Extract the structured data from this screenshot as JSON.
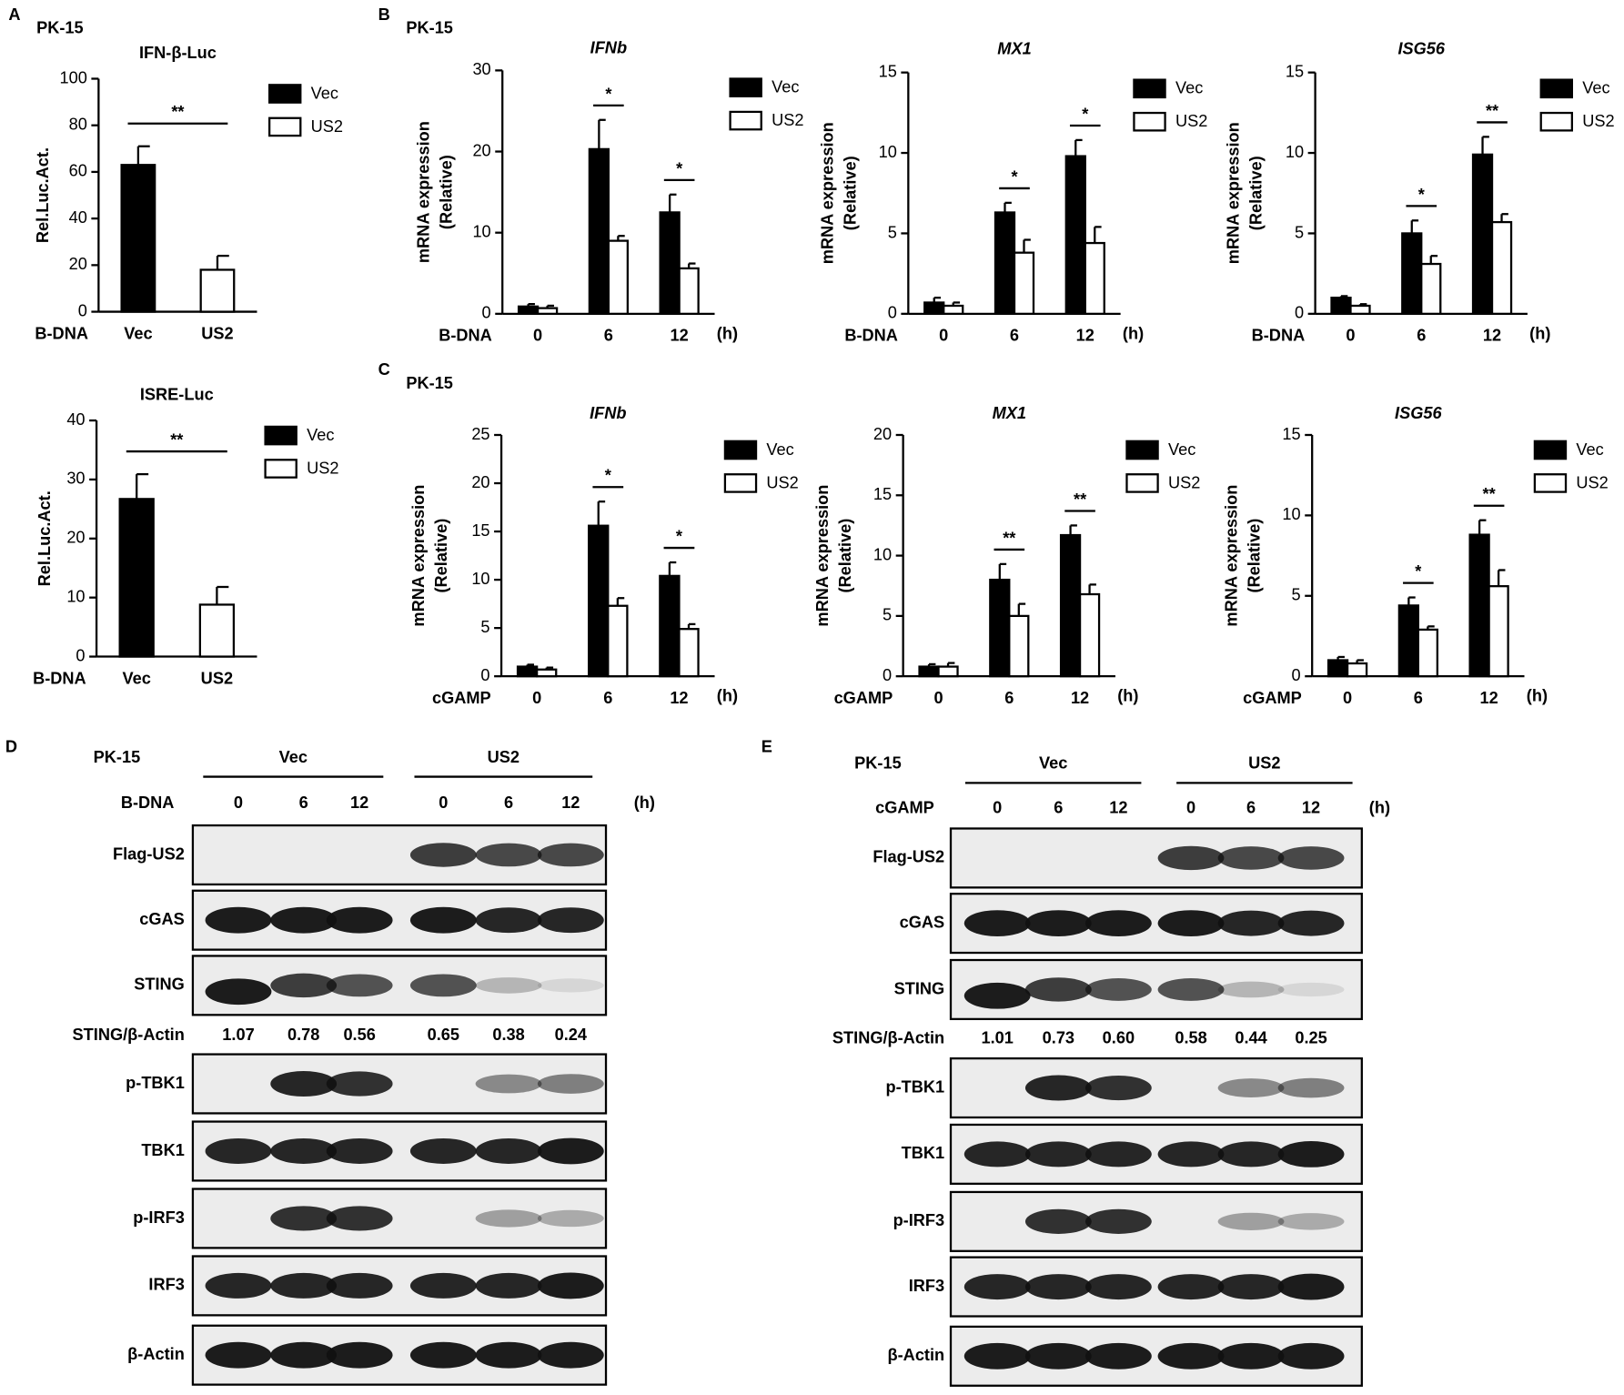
{
  "chart_data": [
    {
      "type": "bar",
      "panel": "A",
      "subtitle": "PK-15",
      "title": "IFN-β-Luc",
      "y_label": [
        "Rel.Luc.Act."
      ],
      "x_label": "B-DNA",
      "categories": [
        "Vec",
        "US2"
      ],
      "series": [
        {
          "name": "Vec",
          "color": "#000000",
          "values": [
            63,
            null
          ],
          "errors": [
            8,
            null
          ]
        },
        {
          "name": "US2",
          "color": "#ffffff",
          "values": [
            null,
            18
          ],
          "errors": [
            null,
            6
          ]
        }
      ],
      "ylim": [
        0,
        100
      ],
      "yticks": [
        0,
        20,
        40,
        60,
        80,
        100
      ],
      "significance": "**"
    },
    {
      "type": "bar",
      "title": "ISRE-Luc",
      "y_label": [
        "Rel.Luc.Act."
      ],
      "x_label": "B-DNA",
      "categories": [
        "Vec",
        "US2"
      ],
      "series": [
        {
          "name": "Vec",
          "color": "#000000",
          "values": [
            26.7,
            null
          ],
          "errors": [
            4.2,
            null
          ]
        },
        {
          "name": "US2",
          "color": "#ffffff",
          "values": [
            null,
            8.8
          ],
          "errors": [
            null,
            3
          ]
        }
      ],
      "ylim": [
        0,
        40
      ],
      "yticks": [
        0,
        10,
        20,
        30,
        40
      ],
      "significance": "**"
    },
    {
      "type": "bar",
      "panel": "B",
      "subtitle": "PK-15",
      "title": "IFNb",
      "italic_title": true,
      "y_label": [
        "mRNA expression",
        "(Relative)"
      ],
      "x_label": "B-DNA",
      "x_unit": "(h)",
      "categories": [
        "0",
        "6",
        "12"
      ],
      "series": [
        {
          "name": "Vec",
          "color": "#000000",
          "values": [
            0.9,
            20.3,
            12.5
          ],
          "errors": [
            0.3,
            3.6,
            2.2
          ]
        },
        {
          "name": "US2",
          "color": "#ffffff",
          "values": [
            0.7,
            9.0,
            5.6
          ],
          "errors": [
            0.3,
            0.6,
            0.6
          ]
        }
      ],
      "ylim": [
        0,
        30
      ],
      "yticks": [
        0,
        10,
        20,
        30
      ],
      "significance": [
        null,
        "*",
        "*"
      ]
    },
    {
      "type": "bar",
      "title": "MX1",
      "italic_title": true,
      "y_label": [
        "mRNA expression",
        "(Relative)"
      ],
      "x_label": "B-DNA",
      "x_unit": "(h)",
      "categories": [
        "0",
        "6",
        "12"
      ],
      "series": [
        {
          "name": "Vec",
          "color": "#000000",
          "values": [
            0.7,
            6.3,
            9.8
          ],
          "errors": [
            0.3,
            0.6,
            1.0
          ]
        },
        {
          "name": "US2",
          "color": "#ffffff",
          "values": [
            0.5,
            3.8,
            4.4
          ],
          "errors": [
            0.2,
            0.8,
            1.0
          ]
        }
      ],
      "ylim": [
        0,
        15
      ],
      "yticks": [
        0,
        5,
        10,
        15
      ],
      "significance": [
        null,
        "*",
        "*"
      ]
    },
    {
      "type": "bar",
      "title": "ISG56",
      "italic_title": true,
      "y_label": [
        "mRNA expression",
        "(Relative)"
      ],
      "x_label": "B-DNA",
      "x_unit": "(h)",
      "categories": [
        "0",
        "6",
        "12"
      ],
      "series": [
        {
          "name": "Vec",
          "color": "#000000",
          "values": [
            1.0,
            5.0,
            9.9
          ],
          "errors": [
            0.1,
            0.8,
            1.1
          ]
        },
        {
          "name": "US2",
          "color": "#ffffff",
          "values": [
            0.5,
            3.1,
            5.7
          ],
          "errors": [
            0.1,
            0.5,
            0.5
          ]
        }
      ],
      "ylim": [
        0,
        15
      ],
      "yticks": [
        0,
        5,
        10,
        15
      ],
      "significance": [
        null,
        "*",
        "**"
      ]
    },
    {
      "type": "bar",
      "panel": "C",
      "subtitle": "PK-15",
      "title": "IFNb",
      "italic_title": true,
      "y_label": [
        "mRNA expression",
        "(Relative)"
      ],
      "x_label": "cGAMP",
      "x_unit": "(h)",
      "categories": [
        "0",
        "6",
        "12"
      ],
      "series": [
        {
          "name": "Vec",
          "color": "#000000",
          "values": [
            1.0,
            15.6,
            10.4
          ],
          "errors": [
            0.2,
            2.5,
            1.4
          ]
        },
        {
          "name": "US2",
          "color": "#ffffff",
          "values": [
            0.7,
            7.3,
            4.9
          ],
          "errors": [
            0.2,
            0.8,
            0.5
          ]
        }
      ],
      "ylim": [
        0,
        25
      ],
      "yticks": [
        0,
        5,
        10,
        15,
        20,
        25
      ],
      "significance": [
        null,
        "*",
        "*"
      ]
    },
    {
      "type": "bar",
      "title": "MX1",
      "italic_title": true,
      "y_label": [
        "mRNA expression",
        "(Relative)"
      ],
      "x_label": "cGAMP",
      "x_unit": "(h)",
      "categories": [
        "0",
        "6",
        "12"
      ],
      "series": [
        {
          "name": "Vec",
          "color": "#000000",
          "values": [
            0.8,
            8.0,
            11.7
          ],
          "errors": [
            0.2,
            1.3,
            0.8
          ]
        },
        {
          "name": "US2",
          "color": "#ffffff",
          "values": [
            0.8,
            5.0,
            6.8
          ],
          "errors": [
            0.3,
            1.0,
            0.8
          ]
        }
      ],
      "ylim": [
        0,
        20
      ],
      "yticks": [
        0,
        5,
        10,
        15,
        20
      ],
      "significance": [
        null,
        "**",
        "**"
      ]
    },
    {
      "type": "bar",
      "title": "ISG56",
      "italic_title": true,
      "y_label": [
        "mRNA expression",
        "(Relative)"
      ],
      "x_label": "cGAMP",
      "x_unit": "(h)",
      "categories": [
        "0",
        "6",
        "12"
      ],
      "series": [
        {
          "name": "Vec",
          "color": "#000000",
          "values": [
            1.0,
            4.4,
            8.8
          ],
          "errors": [
            0.2,
            0.5,
            0.9
          ]
        },
        {
          "name": "US2",
          "color": "#ffffff",
          "values": [
            0.8,
            2.9,
            5.6
          ],
          "errors": [
            0.2,
            0.2,
            1.0
          ]
        }
      ],
      "ylim": [
        0,
        15
      ],
      "yticks": [
        0,
        5,
        10,
        15
      ],
      "significance": [
        null,
        "*",
        "**"
      ]
    }
  ],
  "blots": [
    {
      "panel": "D",
      "cell": "PK-15",
      "groups": [
        "Vec",
        "US2"
      ],
      "treatment": "B-DNA",
      "times": [
        "0",
        "6",
        "12",
        "0",
        "6",
        "12"
      ],
      "unit": "(h)",
      "rows": [
        "Flag-US2",
        "cGAS",
        "STING",
        "p-TBK1",
        "TBK1",
        "p-IRF3",
        "IRF3",
        "β-Actin"
      ],
      "ratio_label": "STING/β-Actin",
      "ratios": [
        "1.07",
        "0.78",
        "0.56",
        "0.65",
        "0.38",
        "0.24"
      ]
    },
    {
      "panel": "E",
      "cell": "PK-15",
      "groups": [
        "Vec",
        "US2"
      ],
      "treatment": "cGAMP",
      "times": [
        "0",
        "6",
        "12",
        "0",
        "6",
        "12"
      ],
      "unit": "(h)",
      "rows": [
        "Flag-US2",
        "cGAS",
        "STING",
        "p-TBK1",
        "TBK1",
        "p-IRF3",
        "IRF3",
        "β-Actin"
      ],
      "ratio_label": "STING/β-Actin",
      "ratios": [
        "1.01",
        "0.73",
        "0.60",
        "0.58",
        "0.44",
        "0.25"
      ]
    }
  ]
}
